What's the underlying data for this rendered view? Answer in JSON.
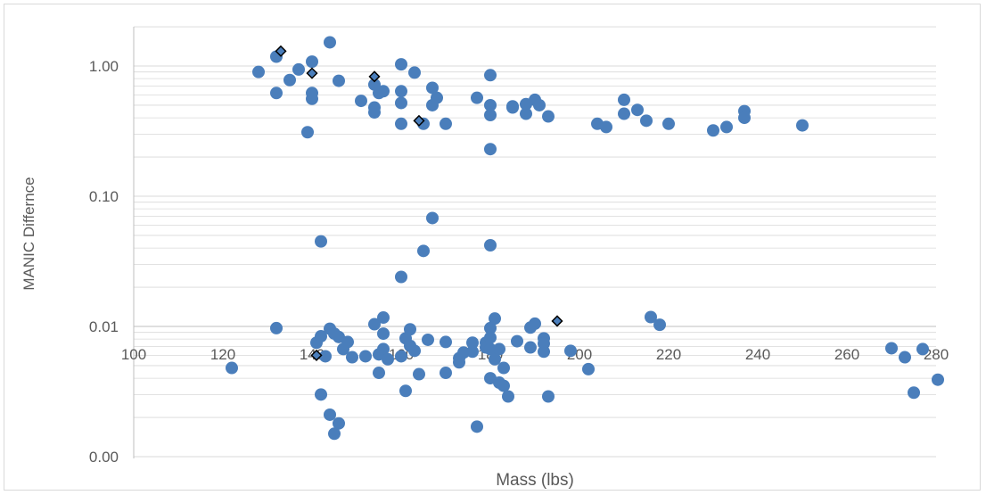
{
  "chart_data": {
    "type": "scatter",
    "title": "",
    "xlabel": "Mass (lbs)",
    "ylabel": "MANIC Differnce",
    "xlim": [
      100,
      280
    ],
    "y_scale": "log",
    "ylim": [
      0.001,
      2
    ],
    "x_ticks": [
      100,
      120,
      140,
      160,
      180,
      200,
      220,
      240,
      260,
      280
    ],
    "x_tick_labels": [
      "100",
      "120",
      "140",
      "160",
      "180",
      "200",
      "220",
      "240",
      "260",
      "280"
    ],
    "y_ticks": [
      0.001,
      0.01,
      0.1,
      1
    ],
    "y_tick_labels": [
      "0.00",
      "0.01",
      "0.10",
      "1.00"
    ],
    "grid": true,
    "legend": "none",
    "colors": {
      "circle": "#4a7ebb",
      "diamond": "#4a7ebb",
      "outline": "#000000",
      "grid": "#d9d9d9",
      "axis": "#bfbfbf",
      "text": "#595959"
    },
    "series": [
      {
        "marker": "circle",
        "points": [
          [
            128,
            0.9
          ],
          [
            132,
            1.18
          ],
          [
            132,
            0.62
          ],
          [
            135,
            0.78
          ],
          [
            137,
            0.94
          ],
          [
            139,
            0.31
          ],
          [
            140,
            1.08
          ],
          [
            140,
            0.62
          ],
          [
            140,
            0.56
          ],
          [
            144,
            1.52
          ],
          [
            146,
            0.77
          ],
          [
            151,
            0.54
          ],
          [
            154,
            0.72
          ],
          [
            154,
            0.48
          ],
          [
            154,
            0.44
          ],
          [
            155,
            0.62
          ],
          [
            156,
            0.64
          ],
          [
            160,
            1.03
          ],
          [
            160,
            0.64
          ],
          [
            160,
            0.52
          ],
          [
            160,
            0.36
          ],
          [
            163,
            0.89
          ],
          [
            165,
            0.36
          ],
          [
            167,
            0.68
          ],
          [
            167,
            0.5
          ],
          [
            168,
            0.57
          ],
          [
            170,
            0.36
          ],
          [
            177,
            0.57
          ],
          [
            180,
            0.85
          ],
          [
            180,
            0.5
          ],
          [
            180,
            0.42
          ],
          [
            180,
            0.23
          ],
          [
            185,
            0.49
          ],
          [
            185,
            0.48
          ],
          [
            188,
            0.51
          ],
          [
            188,
            0.43
          ],
          [
            190,
            0.55
          ],
          [
            191,
            0.5
          ],
          [
            193,
            0.41
          ],
          [
            204,
            0.36
          ],
          [
            206,
            0.34
          ],
          [
            210,
            0.55
          ],
          [
            210,
            0.43
          ],
          [
            213,
            0.46
          ],
          [
            215,
            0.38
          ],
          [
            220,
            0.36
          ],
          [
            230,
            0.32
          ],
          [
            233,
            0.34
          ],
          [
            237,
            0.45
          ],
          [
            237,
            0.4
          ],
          [
            250,
            0.35
          ],
          [
            142,
            0.045
          ],
          [
            160,
            0.024
          ],
          [
            165,
            0.038
          ],
          [
            167,
            0.068
          ],
          [
            180,
            0.042
          ],
          [
            132,
            0.0097
          ],
          [
            122,
            0.0048
          ],
          [
            141,
            0.0075
          ],
          [
            142,
            0.0084
          ],
          [
            143,
            0.0059
          ],
          [
            144,
            0.0096
          ],
          [
            144,
            0.0021
          ],
          [
            145,
            0.0088
          ],
          [
            146,
            0.0083
          ],
          [
            147,
            0.0067
          ],
          [
            148,
            0.0076
          ],
          [
            149,
            0.0058
          ],
          [
            152,
            0.0059
          ],
          [
            154,
            0.0104
          ],
          [
            155,
            0.0061
          ],
          [
            155,
            0.0044
          ],
          [
            156,
            0.0117
          ],
          [
            156,
            0.0088
          ],
          [
            156,
            0.0067
          ],
          [
            157,
            0.0056
          ],
          [
            160,
            0.0059
          ],
          [
            161,
            0.0081
          ],
          [
            161,
            0.0032
          ],
          [
            162,
            0.0095
          ],
          [
            162,
            0.0071
          ],
          [
            163,
            0.0065
          ],
          [
            164,
            0.0043
          ],
          [
            166,
            0.0079
          ],
          [
            170,
            0.0076
          ],
          [
            170,
            0.0044
          ],
          [
            173,
            0.0053
          ],
          [
            173,
            0.0057
          ],
          [
            174,
            0.0063
          ],
          [
            176,
            0.0075
          ],
          [
            176,
            0.0064
          ],
          [
            177,
            0.0017
          ],
          [
            179,
            0.0075
          ],
          [
            179,
            0.0069
          ],
          [
            180,
            0.0097
          ],
          [
            180,
            0.0082
          ],
          [
            180,
            0.0067
          ],
          [
            180,
            0.004
          ],
          [
            181,
            0.0115
          ],
          [
            181,
            0.0056
          ],
          [
            182,
            0.0067
          ],
          [
            182,
            0.0037
          ],
          [
            183,
            0.0048
          ],
          [
            183,
            0.0035
          ],
          [
            184,
            0.0029
          ],
          [
            186,
            0.0077
          ],
          [
            189,
            0.0098
          ],
          [
            189,
            0.0069
          ],
          [
            190,
            0.0105
          ],
          [
            192,
            0.0081
          ],
          [
            192,
            0.0074
          ],
          [
            192,
            0.0064
          ],
          [
            193,
            0.0029
          ],
          [
            198,
            0.0065
          ],
          [
            202,
            0.0047
          ],
          [
            216,
            0.0118
          ],
          [
            218,
            0.0103
          ],
          [
            270,
            0.0068
          ],
          [
            273,
            0.0058
          ],
          [
            275,
            0.0031
          ],
          [
            277,
            0.0067
          ],
          [
            281,
            0.0039
          ],
          [
            146,
            0.0018
          ],
          [
            142,
            0.003
          ],
          [
            145,
            0.0015
          ]
        ]
      },
      {
        "marker": "diamond",
        "points": [
          [
            133,
            1.3
          ],
          [
            140,
            0.88
          ],
          [
            154,
            0.83
          ],
          [
            164,
            0.38
          ],
          [
            195,
            0.011
          ],
          [
            141,
            0.006
          ]
        ]
      }
    ]
  }
}
